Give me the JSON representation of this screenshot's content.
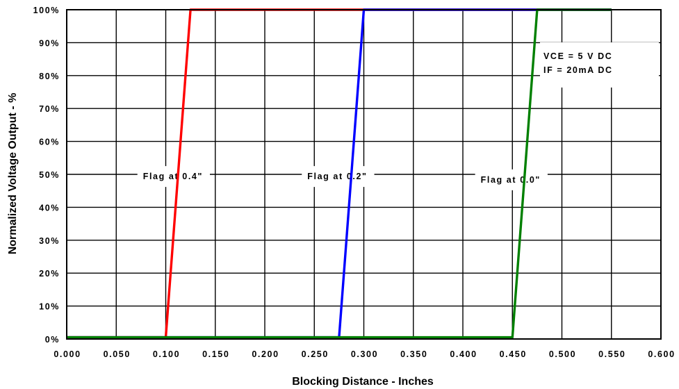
{
  "chart_data": {
    "type": "line",
    "xlabel": "Blocking Distance - Inches",
    "ylabel": "Normalized Voltage Output - %",
    "xlim": [
      0.0,
      0.6
    ],
    "ylim": [
      0,
      100
    ],
    "x_ticks": [
      "0.000",
      "0.050",
      "0.100",
      "0.150",
      "0.200",
      "0.250",
      "0.300",
      "0.350",
      "0.400",
      "0.450",
      "0.500",
      "0.550",
      "0.600"
    ],
    "y_ticks": [
      "0%",
      "10%",
      "20%",
      "30%",
      "40%",
      "50%",
      "60%",
      "70%",
      "80%",
      "90%",
      "100%"
    ],
    "grid": true,
    "series": [
      {
        "color": "#ff0000",
        "x": [
          0.0,
          0.1,
          0.125,
          0.55
        ],
        "y": [
          0.5,
          0.5,
          100,
          100
        ]
      },
      {
        "color": "#0000ff",
        "x": [
          0.0,
          0.275,
          0.3,
          0.55
        ],
        "y": [
          0.5,
          0.5,
          100,
          100
        ]
      },
      {
        "color": "#008000",
        "x": [
          0.0,
          0.45,
          0.475,
          0.55
        ],
        "y": [
          0.5,
          0.5,
          100,
          100
        ]
      }
    ],
    "annotations": [
      {
        "text": "Flag at 0.4\"",
        "x": 0.077,
        "y": 48.5
      },
      {
        "text": "Flag at 0.2\"",
        "x": 0.243,
        "y": 48.5
      },
      {
        "text": "Flag at 0.0\"",
        "x": 0.418,
        "y": 47.5
      }
    ],
    "conditions": [
      "VCE = 5 V DC",
      "IF = 20mA DC"
    ]
  }
}
